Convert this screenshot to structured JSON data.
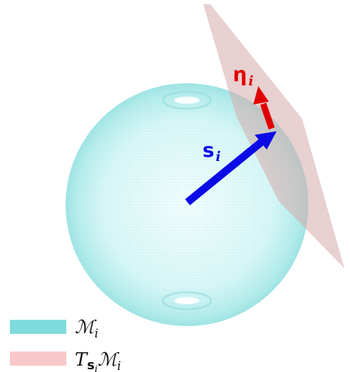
{
  "labels": {
    "s_main": "s",
    "s_sub": "i",
    "eta_main": "η",
    "eta_sub": "i"
  },
  "legend": {
    "manifold": {
      "main": "ℳ",
      "sub": "i",
      "swatch_color": "#7fdcdc"
    },
    "tangent": {
      "T": "T",
      "s": "s",
      "s_sub": "i",
      "M": "ℳ",
      "M_sub": "i",
      "swatch_color": "#f8c8c8"
    }
  },
  "colors": {
    "sphere": "#aee9ea",
    "sphere_edge": "#7fd6d8",
    "plane": "#d9aaaa",
    "s_vector": "#0a0ae6",
    "eta_vector": "#e00000"
  }
}
